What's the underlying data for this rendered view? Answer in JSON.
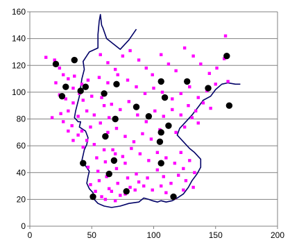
{
  "chart_data": {
    "type": "scatter",
    "title": "",
    "xlabel": "",
    "ylabel": "",
    "xlim": [
      0,
      200
    ],
    "ylim": [
      0,
      160
    ],
    "x_ticks": [
      0,
      50,
      100,
      150,
      200
    ],
    "y_ticks": [
      0,
      20,
      40,
      60,
      80,
      100,
      120,
      140,
      160
    ],
    "x_tick_labels": [
      "0",
      "50",
      "100",
      "150",
      "200"
    ],
    "y_tick_labels": [
      "0",
      "20",
      "40",
      "60",
      "80",
      "100",
      "120",
      "140",
      "160"
    ],
    "grid": "horizontal",
    "legend": "none",
    "colors": {
      "points_small": "#ff00ff",
      "points_large": "#000000",
      "outline": "#000066",
      "gridline": "#808080"
    },
    "series": [
      {
        "marker": "square",
        "color": "#ff00ff",
        "points": [
          [
            13,
            126
          ],
          [
            20,
            124
          ],
          [
            24,
            118
          ],
          [
            27,
            113
          ],
          [
            31,
            110
          ],
          [
            36,
            112
          ],
          [
            42,
            106
          ],
          [
            47,
            109
          ],
          [
            21,
            107
          ],
          [
            29,
            105
          ],
          [
            35,
            103
          ],
          [
            40,
            99
          ],
          [
            24,
            98
          ],
          [
            29,
            95
          ],
          [
            35,
            92
          ],
          [
            43,
            94
          ],
          [
            50,
            97
          ],
          [
            18,
            81
          ],
          [
            25,
            84
          ],
          [
            31,
            86
          ],
          [
            39,
            82
          ],
          [
            46,
            86
          ],
          [
            52,
            83
          ],
          [
            60,
            90
          ],
          [
            27,
            78
          ],
          [
            34,
            75
          ],
          [
            42,
            71
          ],
          [
            49,
            74
          ],
          [
            57,
            77
          ],
          [
            64,
            81
          ],
          [
            31,
            71
          ],
          [
            39,
            68
          ],
          [
            46,
            64
          ],
          [
            35,
            64
          ],
          [
            43,
            59
          ],
          [
            52,
            61
          ],
          [
            60,
            57
          ],
          [
            54,
            51
          ],
          [
            61,
            48
          ],
          [
            69,
            54
          ],
          [
            47,
            44
          ],
          [
            55,
            41
          ],
          [
            62,
            37
          ],
          [
            70,
            43
          ],
          [
            77,
            47
          ],
          [
            49,
            31
          ],
          [
            56,
            34
          ],
          [
            64,
            28
          ],
          [
            71,
            32
          ],
          [
            79,
            36
          ],
          [
            86,
            39
          ],
          [
            58,
            22
          ],
          [
            66,
            26
          ],
          [
            73,
            23
          ],
          [
            81,
            29
          ],
          [
            88,
            33
          ],
          [
            95,
            36
          ],
          [
            53,
            26
          ],
          [
            61,
            20
          ],
          [
            69,
            19
          ],
          [
            77,
            24
          ],
          [
            85,
            27
          ],
          [
            92,
            30
          ],
          [
            99,
            27
          ],
          [
            57,
            128
          ],
          [
            63,
            122
          ],
          [
            69,
            117
          ],
          [
            75,
            127
          ],
          [
            81,
            131
          ],
          [
            88,
            124
          ],
          [
            94,
            118
          ],
          [
            99,
            113
          ],
          [
            106,
            128
          ],
          [
            112,
            121
          ],
          [
            118,
            116
          ],
          [
            125,
            133
          ],
          [
            132,
            127
          ],
          [
            138,
            121
          ],
          [
            145,
            114
          ],
          [
            151,
            118
          ],
          [
            157,
            125
          ],
          [
            158,
            142
          ],
          [
            56,
            111
          ],
          [
            63,
            107
          ],
          [
            71,
            113
          ],
          [
            79,
            109
          ],
          [
            86,
            104
          ],
          [
            93,
            99
          ],
          [
            100,
            103
          ],
          [
            107,
            100
          ],
          [
            115,
            95
          ],
          [
            122,
            99
          ],
          [
            129,
            104
          ],
          [
            136,
            96
          ],
          [
            143,
            101
          ],
          [
            150,
            106
          ],
          [
            160,
            108
          ],
          [
            58,
            96
          ],
          [
            66,
            91
          ],
          [
            73,
            87
          ],
          [
            80,
            93
          ],
          [
            87,
            83
          ],
          [
            94,
            78
          ],
          [
            101,
            86
          ],
          [
            108,
            82
          ],
          [
            115,
            87
          ],
          [
            122,
            83
          ],
          [
            128,
            90
          ],
          [
            134,
            86
          ],
          [
            140,
            92
          ],
          [
            146,
            88
          ],
          [
            63,
            70
          ],
          [
            70,
            73
          ],
          [
            77,
            67
          ],
          [
            84,
            63
          ],
          [
            91,
            69
          ],
          [
            98,
            65
          ],
          [
            105,
            72
          ],
          [
            112,
            76
          ],
          [
            118,
            70
          ],
          [
            125,
            74
          ],
          [
            131,
            81
          ],
          [
            136,
            77
          ],
          [
            67,
            57
          ],
          [
            75,
            52
          ],
          [
            82,
            58
          ],
          [
            89,
            54
          ],
          [
            96,
            49
          ],
          [
            103,
            55
          ],
          [
            110,
            51
          ],
          [
            117,
            47
          ],
          [
            124,
            43
          ],
          [
            129,
            49
          ],
          [
            122,
            55
          ],
          [
            133,
            40
          ],
          [
            103,
            42
          ],
          [
            108,
            37
          ],
          [
            114,
            32
          ],
          [
            120,
            38
          ],
          [
            126,
            34
          ],
          [
            132,
            29
          ],
          [
            110,
            25
          ],
          [
            117,
            21
          ],
          [
            124,
            27
          ],
          [
            106,
            30
          ]
        ]
      },
      {
        "marker": "circle",
        "color": "#000000",
        "points": [
          [
            21,
            121
          ],
          [
            36,
            124
          ],
          [
            29,
            104
          ],
          [
            41,
            101
          ],
          [
            45,
            104
          ],
          [
            26,
            97
          ],
          [
            60,
            99
          ],
          [
            70,
            106
          ],
          [
            86,
            89
          ],
          [
            69,
            80
          ],
          [
            96,
            82
          ],
          [
            61,
            67
          ],
          [
            106,
            108
          ],
          [
            127,
            108
          ],
          [
            144,
            103
          ],
          [
            159,
            127
          ],
          [
            161,
            90
          ],
          [
            109,
            96
          ],
          [
            112,
            75
          ],
          [
            106,
            70
          ],
          [
            105,
            63
          ],
          [
            68,
            49
          ],
          [
            43,
            47
          ],
          [
            64,
            39
          ],
          [
            106,
            47
          ],
          [
            51,
            22
          ],
          [
            78,
            26
          ],
          [
            116,
            22
          ]
        ]
      }
    ],
    "outline_path": [
      [
        86,
        147
      ],
      [
        80,
        139
      ],
      [
        73,
        132
      ],
      [
        62,
        140
      ],
      [
        59,
        148
      ],
      [
        58,
        150
      ],
      [
        57,
        158
      ],
      [
        57,
        158
      ],
      [
        56,
        153
      ],
      [
        55,
        143
      ],
      [
        55,
        133
      ],
      [
        48,
        130
      ],
      [
        43,
        123
      ],
      [
        44,
        117
      ],
      [
        42,
        110
      ],
      [
        40,
        97
      ],
      [
        37,
        86
      ],
      [
        36,
        81
      ],
      [
        39,
        78
      ],
      [
        41,
        78
      ],
      [
        40,
        74
      ],
      [
        45,
        71
      ],
      [
        47,
        66
      ],
      [
        46,
        61
      ],
      [
        44,
        57
      ],
      [
        43,
        53
      ],
      [
        42,
        49
      ],
      [
        45,
        45
      ],
      [
        48,
        41
      ],
      [
        47,
        37
      ],
      [
        46,
        32
      ],
      [
        48,
        28
      ],
      [
        51,
        25
      ],
      [
        52,
        20
      ],
      [
        55,
        17
      ],
      [
        60,
        15
      ],
      [
        66,
        14
      ],
      [
        73,
        15
      ],
      [
        80,
        17
      ],
      [
        88,
        18
      ],
      [
        92,
        21
      ],
      [
        96,
        20
      ],
      [
        99,
        19
      ],
      [
        103,
        18
      ],
      [
        106,
        19
      ],
      [
        110,
        18
      ],
      [
        115,
        19
      ],
      [
        119,
        21
      ],
      [
        124,
        24
      ],
      [
        128,
        29
      ],
      [
        131,
        34
      ],
      [
        135,
        39
      ],
      [
        138,
        44
      ],
      [
        138,
        50
      ],
      [
        133,
        55
      ],
      [
        129,
        58
      ],
      [
        124,
        63
      ],
      [
        119,
        68
      ],
      [
        121,
        73
      ],
      [
        126,
        78
      ],
      [
        131,
        83
      ],
      [
        136,
        89
      ],
      [
        140,
        94
      ],
      [
        146,
        97
      ],
      [
        150,
        102
      ],
      [
        155,
        106
      ],
      [
        160,
        107
      ],
      [
        166,
        106
      ],
      [
        170,
        106
      ]
    ]
  }
}
